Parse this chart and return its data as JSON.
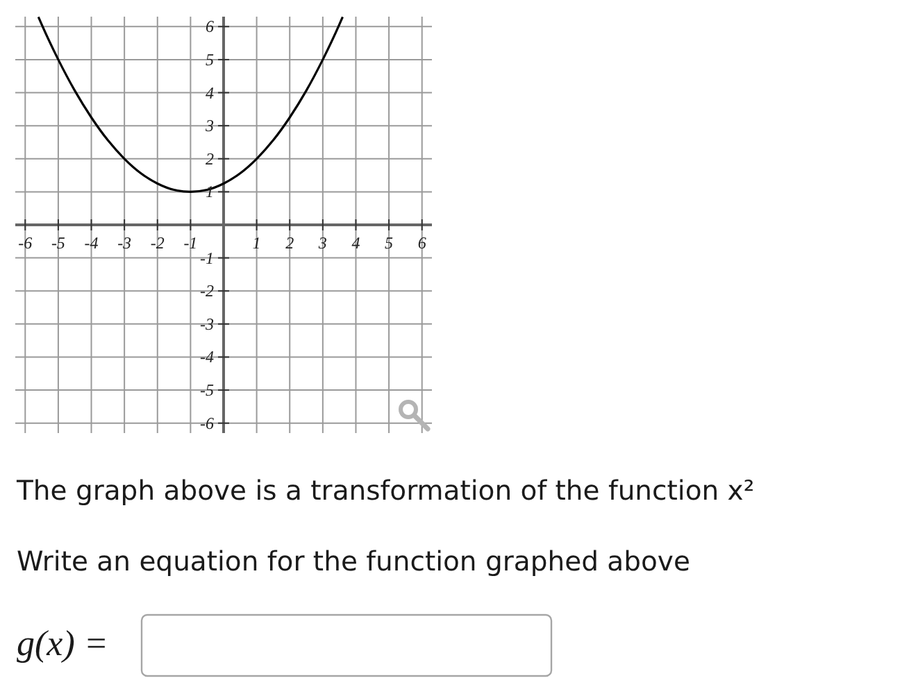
{
  "chart_data": {
    "type": "line",
    "x": [
      -5.6,
      -5.5,
      -5,
      -4.5,
      -4,
      -3.5,
      -3,
      -2.5,
      -2,
      -1.5,
      -1,
      -0.5,
      0,
      0.5,
      1,
      1.5,
      2,
      2.5,
      3,
      3.5,
      3.6
    ],
    "series": [
      {
        "color": "#000000",
        "values": [
          6.29,
          6.06,
          5,
          4.06,
          3.25,
          2.56,
          2,
          1.56,
          1.25,
          1.06,
          1,
          1.06,
          1.25,
          1.56,
          2,
          2.56,
          3.25,
          4.06,
          5,
          6.06,
          6.29
        ]
      }
    ],
    "xlim": [
      -6.3,
      6.3
    ],
    "ylim": [
      -6.3,
      6.3
    ],
    "xticks": [
      -6,
      -5,
      -4,
      -3,
      -2,
      -1,
      1,
      2,
      3,
      4,
      5,
      6
    ],
    "yticks": [
      -6,
      -5,
      -4,
      -3,
      -2,
      -1,
      1,
      2,
      3,
      4,
      5,
      6
    ],
    "grid": true,
    "line_style": "solid",
    "annotations": [
      "The graph above is a transformation of the function x²",
      "Write an equation for the function graphed above",
      "g(x) ="
    ]
  }
}
